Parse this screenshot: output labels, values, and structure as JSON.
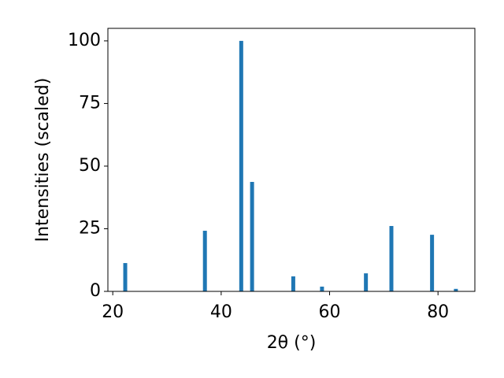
{
  "chart_data": {
    "type": "bar",
    "x_label": "2θ (°)",
    "y_label": "Intensities (scaled)",
    "x": [
      22.3,
      37.0,
      43.7,
      45.7,
      53.3,
      58.6,
      66.7,
      71.4,
      78.9,
      83.3
    ],
    "values": [
      11.3,
      24.2,
      100,
      43.7,
      6.0,
      1.9,
      7.2,
      26.1,
      22.6,
      1.0
    ],
    "color": "#1f77b4",
    "xlim": [
      19.1,
      86.8
    ],
    "xticks": [
      20,
      40,
      60,
      80
    ],
    "ylim": [
      0,
      105
    ],
    "yticks": [
      0,
      25,
      50,
      75,
      100
    ]
  }
}
